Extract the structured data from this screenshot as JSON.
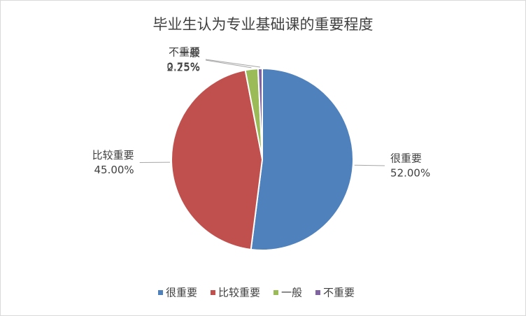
{
  "chart_data": {
    "type": "pie",
    "title": "毕业生认为专业基础课的重要程度",
    "categories": [
      "很重要",
      "比较重要",
      "一般",
      "不重要"
    ],
    "values": [
      52,
      45,
      2.25,
      0.75
    ],
    "value_labels": [
      "52.00%",
      "45.00%",
      "2.25%",
      "0.75%"
    ],
    "colors": [
      "#4f81bd",
      "#c0504d",
      "#9bbb59",
      "#8064a2"
    ],
    "legend": "bottom"
  }
}
